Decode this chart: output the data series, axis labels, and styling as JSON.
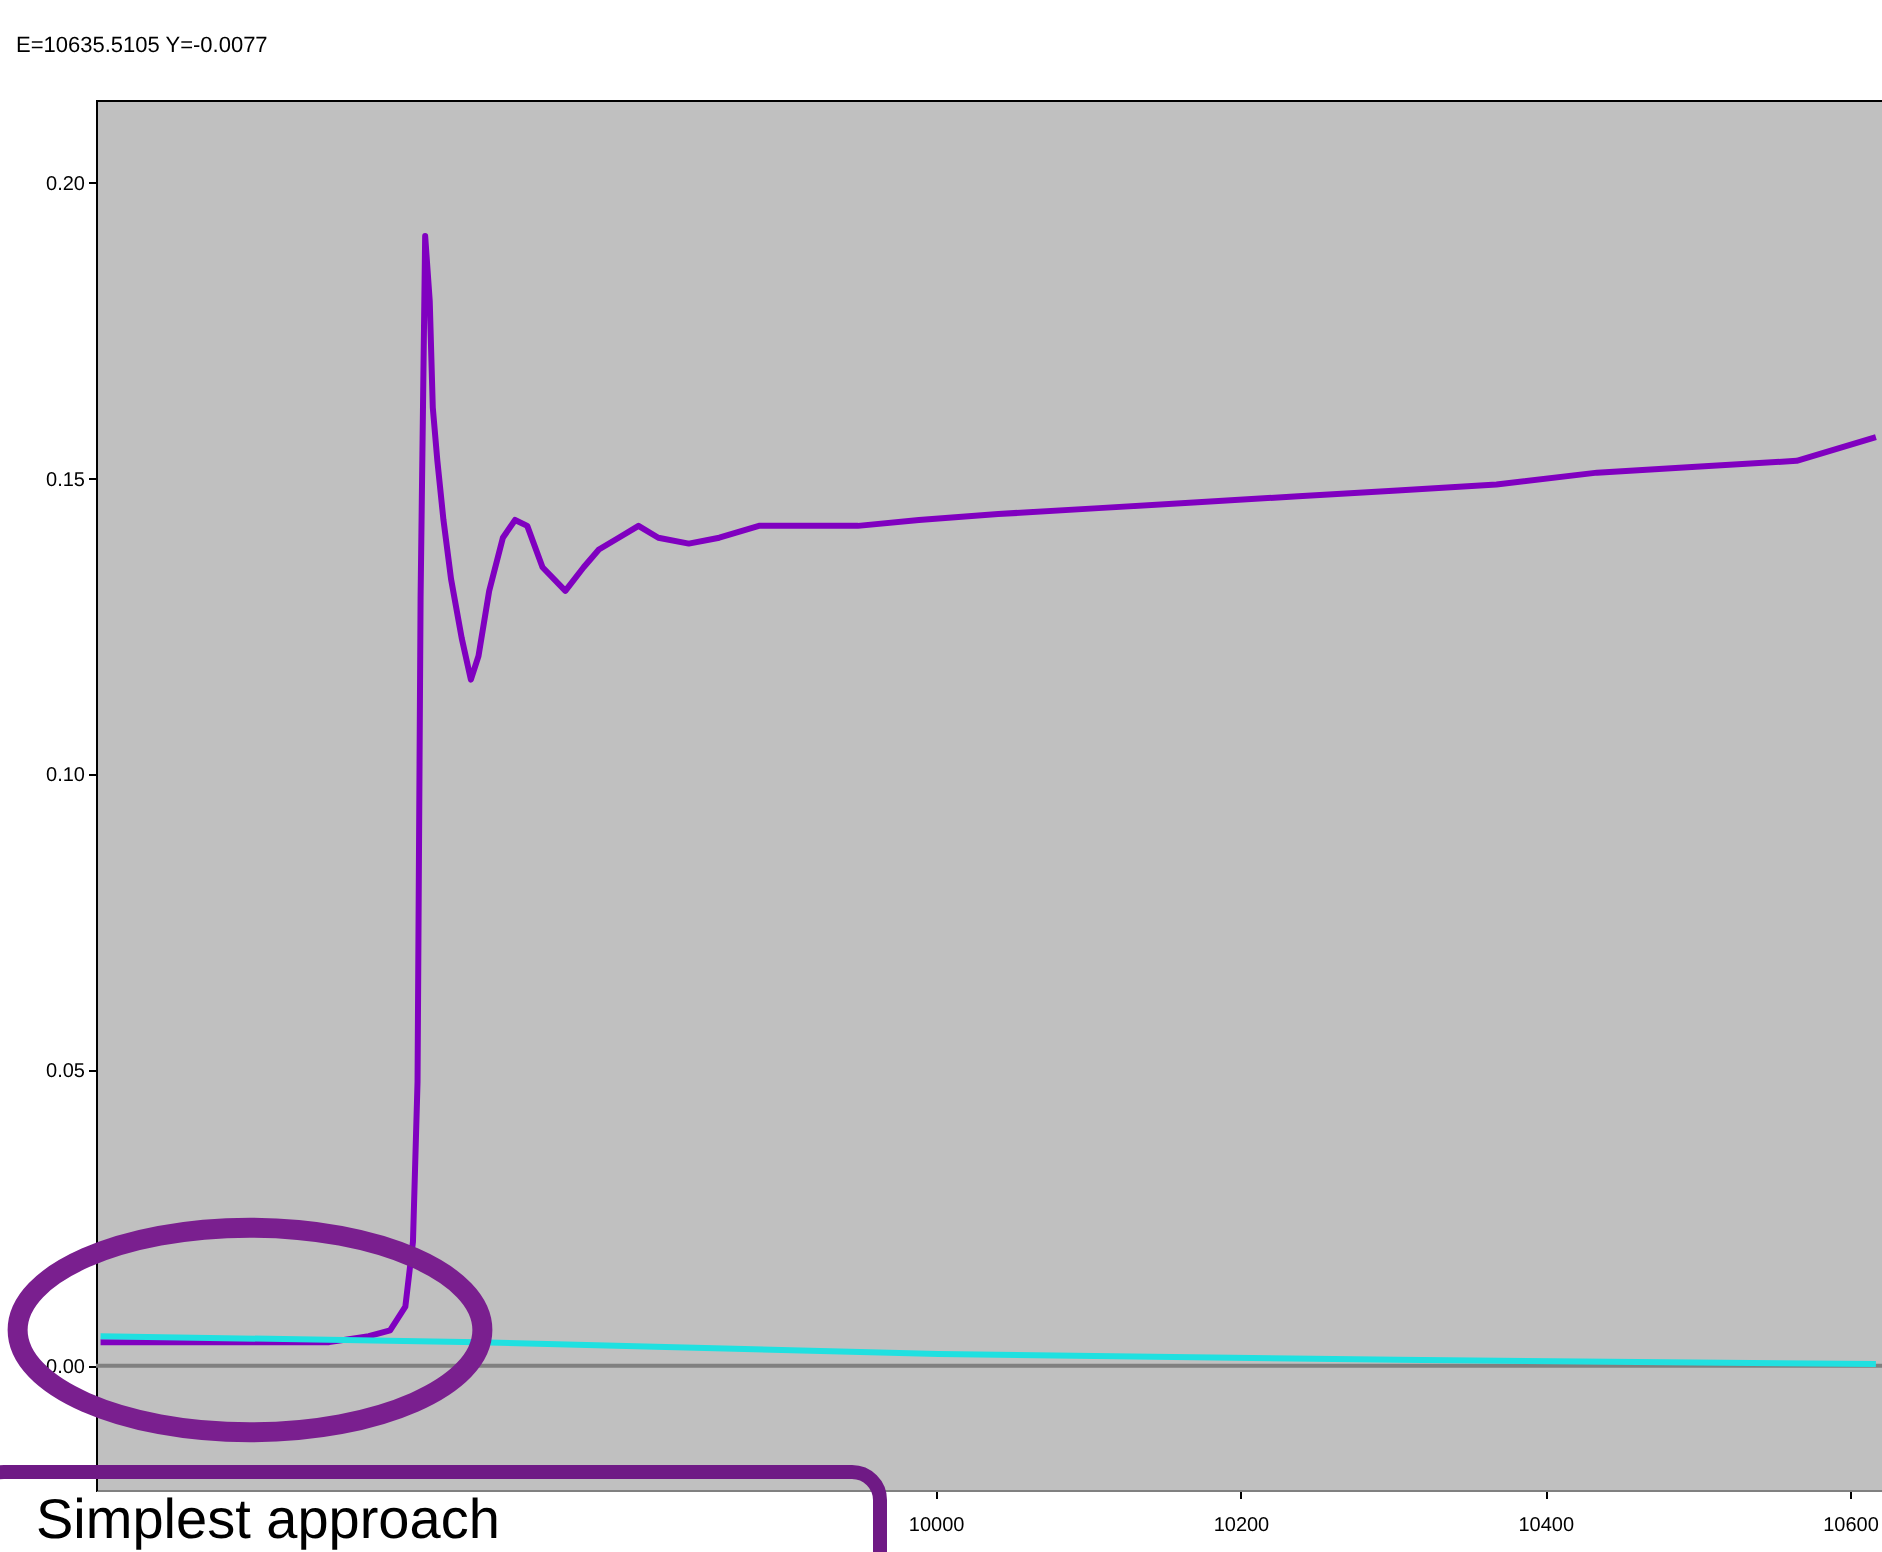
{
  "chart_data": {
    "type": "line",
    "annotations": [
      "E=10635.5105  Y=-0.0077",
      "Simplest approach"
    ],
    "xlim": [
      9449,
      10621
    ],
    "xticks": [
      10000,
      10200,
      10400,
      10600
    ],
    "ylim": [
      -0.021,
      0.214
    ],
    "yticks": [
      {
        "value": 0,
        "label": "0.00"
      },
      {
        "value": 0.05,
        "label": "0.05"
      },
      {
        "value": 0.1,
        "label": "0.10"
      },
      {
        "value": 0.15,
        "label": "0.15"
      },
      {
        "value": 0.2,
        "label": "0.20"
      }
    ],
    "grid": false,
    "legend": false,
    "line_style": "solid",
    "ref_lines": [
      {
        "axis": "y",
        "value": 0,
        "color": "#808080"
      }
    ],
    "series": [
      {
        "color": "#8000c0",
        "x": [
          9452,
          9517,
          9602,
          9628,
          9642,
          9652,
          9657,
          9660,
          9662,
          9665,
          9668,
          9670,
          9673,
          9677,
          9682,
          9689,
          9695,
          9700,
          9707,
          9716,
          9724,
          9732,
          9742,
          9757,
          9769,
          9779,
          9792,
          9805,
          9818,
          9838,
          9858,
          9884,
          9910,
          9949,
          9989,
          10041,
          10107,
          10172,
          10238,
          10303,
          10368,
          10434,
          10499,
          10565,
          10617
        ],
        "values": [
          0.004,
          0.004,
          0.004,
          0.005,
          0.006,
          0.01,
          0.021,
          0.048,
          0.13,
          0.191,
          0.18,
          0.162,
          0.153,
          0.143,
          0.133,
          0.123,
          0.116,
          0.12,
          0.131,
          0.14,
          0.143,
          0.142,
          0.135,
          0.131,
          0.135,
          0.138,
          0.14,
          0.142,
          0.14,
          0.139,
          0.14,
          0.142,
          0.142,
          0.142,
          0.143,
          0.144,
          0.145,
          0.146,
          0.147,
          0.148,
          0.149,
          0.151,
          0.152,
          0.153,
          0.157
        ]
      },
      {
        "color": "#20e0e0",
        "x": [
          9452,
          9700,
          10002,
          10303,
          10617
        ],
        "values": [
          0.005,
          0.004,
          0.002,
          0.001,
          0.0003
        ]
      }
    ]
  }
}
